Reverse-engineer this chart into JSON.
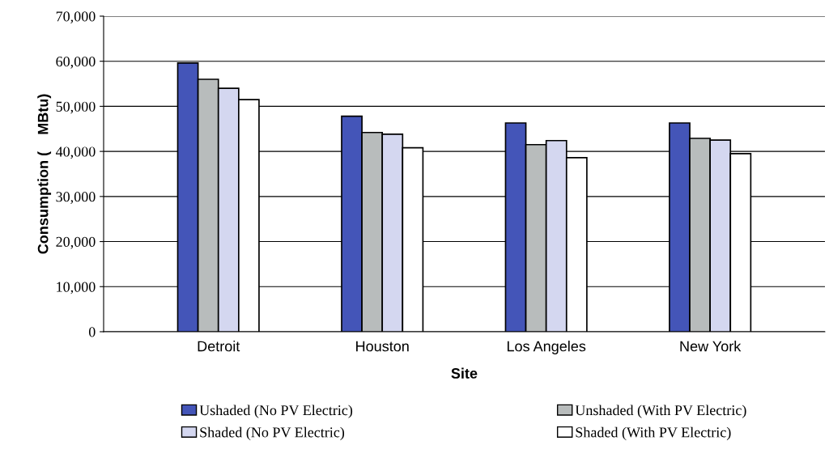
{
  "chart_data": {
    "type": "bar",
    "xlabel": "Site",
    "ylabel": "Consumption (    MBtu)",
    "categories": [
      "Detroit",
      "Houston",
      "Los Angeles",
      "New York"
    ],
    "series": [
      {
        "name": "Ushaded (No PV Electric)",
        "color": "#4455b8",
        "values": [
          59600,
          47800,
          46300,
          46300
        ]
      },
      {
        "name": "Unshaded (With PV Electric)",
        "color": "#b8bcbc",
        "values": [
          56000,
          44200,
          41500,
          42900
        ]
      },
      {
        "name": "Shaded (No PV Electric)",
        "color": "#d4d7f0",
        "values": [
          54000,
          43800,
          42400,
          42500
        ]
      },
      {
        "name": "Shaded (With PV Electric)",
        "color": "#ffffff",
        "values": [
          51500,
          40800,
          38600,
          39500
        ]
      }
    ],
    "ylim": [
      0,
      70000
    ],
    "yticks": [
      {
        "value": 0,
        "label": "0"
      },
      {
        "value": 10000,
        "label": "10,000"
      },
      {
        "value": 20000,
        "label": "20,000"
      },
      {
        "value": 30000,
        "label": "30,000"
      },
      {
        "value": 40000,
        "label": "40,000"
      },
      {
        "value": 50000,
        "label": "50,000"
      },
      {
        "value": 60000,
        "label": "60,000"
      },
      {
        "value": 70000,
        "label": "70,000"
      }
    ],
    "grid": "y",
    "legend": "bottom"
  }
}
